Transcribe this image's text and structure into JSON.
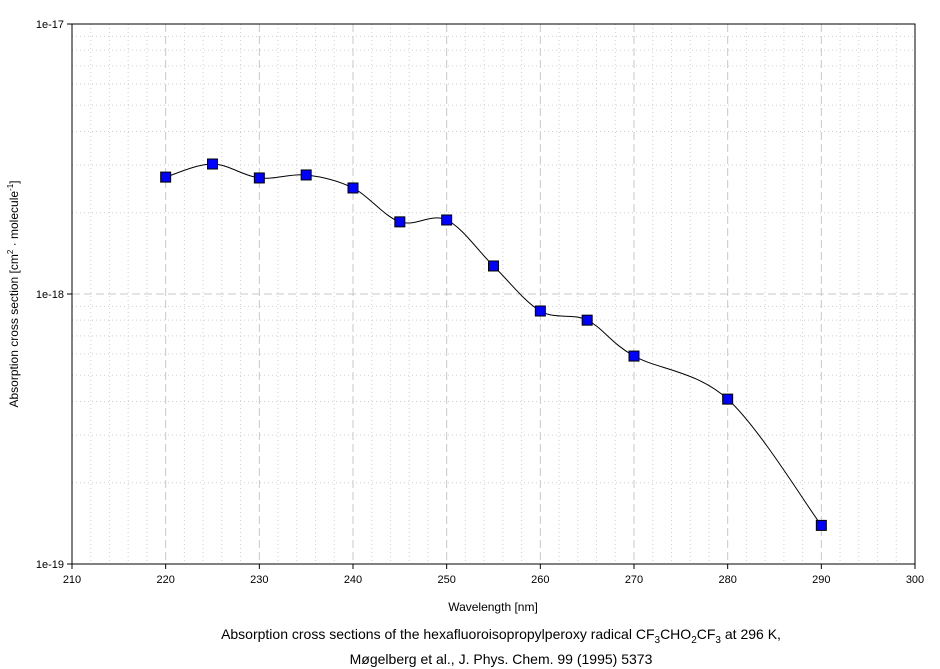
{
  "chart_data": {
    "type": "line",
    "xlabel": "Wavelength [nm]",
    "ylabel_parts": [
      "Absorption cross section [cm",
      "2",
      " · molecule",
      "-1",
      "]"
    ],
    "xlim": [
      210,
      300
    ],
    "ylim": [
      1e-19,
      1e-17
    ],
    "yscale": "log",
    "x_ticks": [
      "210",
      "220",
      "230",
      "240",
      "250",
      "260",
      "270",
      "280",
      "290",
      "300"
    ],
    "y_ticks": [
      "1e-19",
      "1e-18",
      "1e-17"
    ],
    "grid": true,
    "x": [
      220,
      225,
      230,
      235,
      240,
      245,
      250,
      255,
      260,
      265,
      270,
      280,
      290
    ],
    "y": [
      2.71e-18,
      3.03e-18,
      2.69e-18,
      2.76e-18,
      2.47e-18,
      1.85e-18,
      1.88e-18,
      1.27e-18,
      8.65e-19,
      8e-19,
      5.89e-19,
      4.08e-19,
      1.39e-19
    ],
    "marker_color": "#0000ff",
    "line_color": "#000000"
  },
  "caption": {
    "line1_a": "Absorption cross sections of the hexafluoroisopropylperoxy radical CF",
    "sub1": "3",
    "line1_b": "CHO",
    "sub2": "2",
    "line1_c": "CF",
    "sub3": "3",
    "line1_d": " at 296 K,",
    "line2": "Møgelberg et al., J. Phys. Chem. 99 (1995) 5373"
  }
}
